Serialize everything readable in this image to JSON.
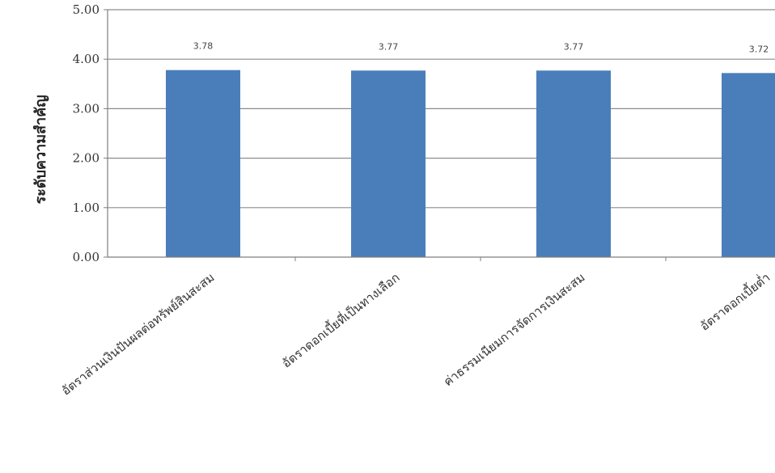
{
  "chart_data": {
    "type": "bar",
    "categories": [
      "อัตราส่วนเงินปันผลต่อทรัพย์สินสะสม",
      "อัตราดอกเบี้ยที่เป็นทางเลือก",
      "ค่าธรรมเนียมการจัดการเงินสะสม",
      "อัตราดอกเบี้ยต่ำ"
    ],
    "values": [
      3.78,
      3.77,
      3.77,
      3.72
    ],
    "data_labels": [
      "3.78",
      "3.77",
      "3.77",
      "3.72"
    ],
    "ylabel": "ระดับความสำคัญ",
    "xlabel": "",
    "ylim": [
      0,
      5
    ],
    "yticks": [
      "0.00",
      "1.00",
      "2.00",
      "3.00",
      "4.00",
      "5.00"
    ],
    "grid": true,
    "bar_color": "#4a7ebb",
    "grid_color": "#8c8c8c",
    "axis_color": "#7f7f7f"
  }
}
